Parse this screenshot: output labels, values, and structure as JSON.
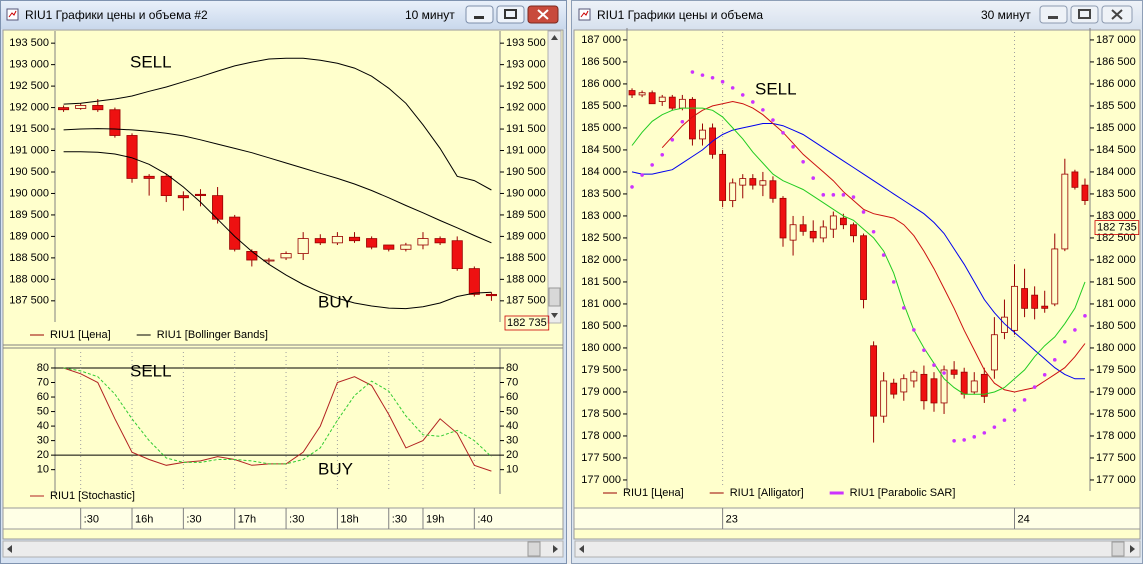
{
  "windows": [
    {
      "title": "RIU1 Графики цены и объема #2",
      "timeframe": "10 минут"
    },
    {
      "title": "RIU1 Графики цены и объема",
      "timeframe": "30 минут"
    }
  ],
  "chart_data": [
    {
      "type": "candlestick",
      "ylim": [
        187100,
        193690
      ],
      "yticks": [
        {
          "value": 187500,
          "label": "187 500"
        },
        {
          "value": 188000,
          "label": "188 000"
        },
        {
          "value": 188500,
          "label": "188 500"
        },
        {
          "value": 189000,
          "label": "189 000"
        },
        {
          "value": 189500,
          "label": "189 500"
        },
        {
          "value": 190000,
          "label": "190 000"
        },
        {
          "value": 190500,
          "label": "190 500"
        },
        {
          "value": 191000,
          "label": "191 000"
        },
        {
          "value": 191500,
          "label": "191 500"
        },
        {
          "value": 192000,
          "label": "192 000"
        },
        {
          "value": 192500,
          "label": "192 500"
        },
        {
          "value": 193000,
          "label": "193 000"
        },
        {
          "value": 193500,
          "label": "193 500"
        }
      ],
      "grid": false,
      "last_price": {
        "value": 182735,
        "label": "182 735"
      },
      "annotations": [
        {
          "text": "SELL",
          "color": "#dd1111"
        },
        {
          "text": "BUY",
          "color": "#33dd33"
        }
      ],
      "series": [
        {
          "name": "RIU1 [Цена]",
          "style": "candles",
          "color": "#990000",
          "open": [
            192000,
            191980,
            192050,
            191950,
            191350,
            190400,
            190400,
            189950,
            189980,
            189950,
            189450,
            188650,
            188450,
            188500,
            188600,
            188950,
            188850,
            188980,
            188950,
            188800,
            188700,
            188800,
            188950,
            188900,
            188250,
            187650
          ],
          "high": [
            192050,
            192100,
            192200,
            192000,
            191400,
            190450,
            190450,
            190050,
            190100,
            190150,
            189500,
            188700,
            188500,
            188650,
            189100,
            189050,
            189100,
            189100,
            189000,
            188800,
            188850,
            189100,
            189000,
            189000,
            188300,
            187700
          ],
          "low": [
            191900,
            191950,
            191900,
            191300,
            190250,
            189950,
            189800,
            189600,
            189700,
            189300,
            188650,
            188300,
            188350,
            188450,
            188450,
            188800,
            188800,
            188850,
            188700,
            188650,
            188650,
            188700,
            188800,
            188200,
            187600,
            187500
          ],
          "close": [
            191950,
            192050,
            191950,
            191350,
            190350,
            190350,
            189950,
            189900,
            189950,
            189400,
            188700,
            188450,
            188450,
            188600,
            188950,
            188850,
            189000,
            188900,
            188750,
            188700,
            188800,
            188950,
            188850,
            188250,
            187650,
            187620
          ]
        },
        {
          "name": "RIU1 [Bollinger Bands]",
          "style": "lines",
          "color": "#000000",
          "lines": [
            {
              "values": [
                192080,
                192100,
                192150,
                192200,
                192270,
                192380,
                192480,
                192600,
                192720,
                192850,
                192970,
                193060,
                193130,
                193150,
                193150,
                193100,
                193030,
                192920,
                192730,
                192450,
                192100,
                191600,
                191050,
                190400,
                190300,
                190080
              ]
            },
            {
              "values": [
                191480,
                191500,
                191510,
                191500,
                191480,
                191450,
                191400,
                191340,
                191250,
                191150,
                191050,
                190950,
                190830,
                190710,
                190590,
                190470,
                190350,
                190220,
                190070,
                189900,
                189720,
                189550,
                189370,
                189200,
                189020,
                188850
              ]
            },
            {
              "values": [
                190970,
                190970,
                190960,
                190920,
                190830,
                190680,
                190450,
                190150,
                189800,
                189400,
                189000,
                188650,
                188350,
                188100,
                187880,
                187700,
                187560,
                187450,
                187380,
                187330,
                187320,
                187360,
                187450,
                187600,
                187680,
                187700
              ]
            }
          ]
        }
      ]
    },
    {
      "type": "line",
      "ylim": [
        -4,
        91
      ],
      "yticks": [
        10,
        20,
        30,
        40,
        50,
        60,
        70,
        80
      ],
      "levels": [
        80,
        20
      ],
      "xgrid": true,
      "categories": [
        null,
        ":30",
        null,
        null,
        "16h",
        null,
        null,
        ":30",
        null,
        null,
        "17h",
        null,
        null,
        ":30",
        null,
        null,
        "18h",
        null,
        null,
        ":30",
        null,
        "19h",
        null,
        null,
        ":40",
        null
      ],
      "annotations": [
        {
          "text": "SELL",
          "color": "#dd1111"
        },
        {
          "text": "BUY",
          "color": "#33dd33"
        }
      ],
      "series": [
        {
          "name": "RIU1 [Stochastic]",
          "style": "line",
          "color": "#b22222",
          "values": [
            80,
            76,
            70,
            45,
            22,
            17,
            13,
            15,
            16,
            19,
            17,
            13,
            14,
            14,
            22,
            40,
            70,
            74,
            68,
            48,
            25,
            30,
            45,
            35,
            13,
            9
          ]
        },
        {
          "style": "line",
          "dashed": true,
          "color": "#33cc33",
          "values": [
            80,
            78,
            74,
            62,
            45,
            30,
            18,
            15,
            15,
            17,
            17,
            16,
            14,
            14,
            17,
            25,
            44,
            61,
            71,
            64,
            47,
            34,
            33,
            37,
            30,
            19
          ]
        }
      ]
    },
    {
      "type": "candlestick",
      "ylim": [
        176840,
        187180
      ],
      "xgrid": true,
      "yticks": [
        {
          "value": 177000,
          "label": "177 000"
        },
        {
          "value": 177500,
          "label": "177 500"
        },
        {
          "value": 178000,
          "label": "178 000"
        },
        {
          "value": 178500,
          "label": "178 500"
        },
        {
          "value": 179000,
          "label": "179 000"
        },
        {
          "value": 179500,
          "label": "179 500"
        },
        {
          "value": 180000,
          "label": "180 000"
        },
        {
          "value": 180500,
          "label": "180 500"
        },
        {
          "value": 181000,
          "label": "181 000"
        },
        {
          "value": 181500,
          "label": "181 500"
        },
        {
          "value": 182000,
          "label": "182 000"
        },
        {
          "value": 182500,
          "label": "182 500"
        },
        {
          "value": 183000,
          "label": "183 000"
        },
        {
          "value": 183500,
          "label": "183 500"
        },
        {
          "value": 184000,
          "label": "184 000"
        },
        {
          "value": 184500,
          "label": "184 500"
        },
        {
          "value": 185000,
          "label": "185 000"
        },
        {
          "value": 185500,
          "label": "185 500"
        },
        {
          "value": 186000,
          "label": "186 000"
        },
        {
          "value": 186500,
          "label": "186 500"
        },
        {
          "value": 187000,
          "label": "187 000"
        }
      ],
      "categories": [
        null,
        null,
        null,
        null,
        null,
        null,
        null,
        null,
        null,
        "23",
        null,
        null,
        null,
        null,
        null,
        null,
        null,
        null,
        null,
        null,
        null,
        null,
        null,
        null,
        null,
        null,
        null,
        null,
        null,
        null,
        null,
        null,
        null,
        null,
        null,
        null,
        null,
        null,
        "24",
        null,
        null,
        null,
        null,
        null,
        null,
        null
      ],
      "last_price": {
        "value": 182735,
        "label": "182 735"
      },
      "annotations": [
        {
          "text": "SELL",
          "color": "#dd1111"
        }
      ],
      "series": [
        {
          "name": "RIU1 [Цена]",
          "style": "candles",
          "color": "#990000",
          "open": [
            185850,
            185750,
            185800,
            185600,
            185700,
            185450,
            185650,
            184750,
            185000,
            184400,
            183350,
            183700,
            183850,
            183700,
            183800,
            183400,
            182450,
            182800,
            182650,
            182500,
            182700,
            182950,
            182800,
            182550,
            180050,
            178450,
            179200,
            179000,
            179250,
            179400,
            179300,
            178750,
            179500,
            179450,
            179000,
            179400,
            179500,
            180350,
            180400,
            181350,
            181200,
            180950,
            181000,
            182250,
            184000,
            183700
          ],
          "high": [
            185900,
            185850,
            185850,
            185750,
            185750,
            185750,
            185700,
            185100,
            185100,
            184500,
            183850,
            183950,
            183950,
            184000,
            183900,
            183450,
            183000,
            183000,
            182900,
            182900,
            183100,
            183050,
            182850,
            182600,
            180150,
            179450,
            179300,
            179400,
            179500,
            179600,
            179450,
            179600,
            179700,
            179550,
            179450,
            179550,
            180700,
            181100,
            181900,
            181800,
            181400,
            181300,
            182600,
            184300,
            184050,
            183850
          ],
          "low": [
            185680,
            185700,
            185550,
            185500,
            185400,
            185400,
            184600,
            184600,
            184300,
            183200,
            183200,
            183400,
            183600,
            183450,
            183300,
            182300,
            182100,
            182550,
            182400,
            182400,
            182500,
            182700,
            182400,
            180900,
            177850,
            178300,
            178850,
            178800,
            179100,
            178600,
            178550,
            178500,
            179300,
            178850,
            178950,
            178750,
            179300,
            180200,
            180300,
            180700,
            180650,
            180800,
            180950,
            182200,
            183600,
            183250
          ],
          "close": [
            185750,
            185800,
            185550,
            185700,
            185450,
            185650,
            184750,
            184950,
            184400,
            183350,
            183750,
            183850,
            183700,
            183800,
            183400,
            182500,
            182800,
            182650,
            182500,
            182750,
            183000,
            182800,
            182550,
            181100,
            178450,
            179250,
            178950,
            179300,
            179450,
            178800,
            178750,
            179500,
            179400,
            178950,
            179250,
            178900,
            180300,
            180700,
            181400,
            180900,
            180900,
            180900,
            182250,
            183950,
            183650,
            183350
          ]
        },
        {
          "name": "RIU1 [Alligator]",
          "style": "lines",
          "color": "#990000",
          "lines": [
            {
              "color": "#0000ee",
              "values": [
                184000,
                183950,
                183950,
                184000,
                184050,
                184200,
                184350,
                184500,
                184700,
                184850,
                184950,
                185000,
                185050,
                185100,
                185100,
                185050,
                184950,
                184850,
                184700,
                184550,
                184400,
                184250,
                184100,
                183950,
                183800,
                183650,
                183500,
                183350,
                183200,
                183050,
                182850,
                182600,
                182250,
                181900,
                181500,
                181100,
                180800,
                180550,
                180350,
                180150,
                179950,
                179750,
                179550,
                179400,
                179300,
                179300
              ]
            },
            {
              "color": "#cc1111",
              "values": [
                null,
                null,
                null,
                184550,
                184800,
                185050,
                185250,
                185400,
                185500,
                185550,
                185600,
                185550,
                185450,
                185300,
                185100,
                184900,
                184650,
                184400,
                184200,
                184000,
                183800,
                183550,
                183350,
                183150,
                183050,
                183000,
                182950,
                182800,
                182550,
                182200,
                181800,
                181350,
                180900,
                180400,
                179950,
                179500,
                179200,
                179050,
                179000,
                179050,
                179100,
                179250,
                179400,
                179550,
                179800,
                180100
              ]
            },
            {
              "color": "#22cc22",
              "values": [
                184600,
                184900,
                185150,
                185300,
                185400,
                185450,
                185450,
                185450,
                185400,
                185250,
                185000,
                184750,
                184450,
                184200,
                183950,
                183800,
                183700,
                183600,
                183450,
                183300,
                183150,
                183000,
                182900,
                182700,
                182500,
                182200,
                181700,
                181000,
                180400,
                180000,
                179650,
                179300,
                179100,
                178950,
                178950,
                178950,
                179000,
                179100,
                179300,
                179500,
                179800,
                180050,
                180250,
                180550,
                180900,
                181500
              ]
            }
          ]
        },
        {
          "name": "RIU1 [Parabolic SAR]",
          "style": "dots",
          "color": "#cc33ff",
          "values": [
            183660,
            183930,
            184160,
            184390,
            184730,
            185140,
            186270,
            186200,
            186140,
            186050,
            185910,
            185750,
            185590,
            185410,
            185180,
            184890,
            184570,
            184230,
            183860,
            183480,
            183480,
            183480,
            183430,
            183090,
            182640,
            182110,
            181500,
            180910,
            180410,
            179950,
            179610,
            179430,
            177890,
            177910,
            177980,
            178070,
            178200,
            178360,
            178590,
            178820,
            179110,
            179390,
            179730,
            180140,
            180410,
            180730
          ]
        }
      ]
    }
  ]
}
